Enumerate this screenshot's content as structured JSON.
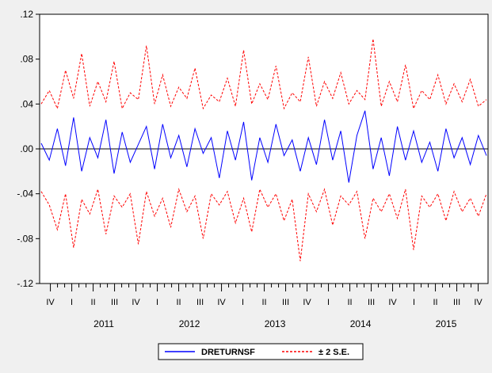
{
  "chart_data": {
    "type": "line",
    "title": "",
    "xlabel": "",
    "ylabel": "",
    "ylim": [
      -0.12,
      0.12
    ],
    "y_ticks": [
      0.12,
      0.08,
      0.04,
      0.0,
      -0.04,
      -0.08,
      -0.12
    ],
    "y_tick_labels": [
      ".12",
      ".08",
      ".04",
      ".00",
      "-.04",
      "-.08",
      "-.12"
    ],
    "x_range": [
      "2010-10-01",
      "2015-12-31"
    ],
    "quarter_labels": [
      "IV",
      "I",
      "II",
      "III",
      "IV",
      "I",
      "II",
      "III",
      "IV",
      "I",
      "II",
      "III",
      "IV",
      "I",
      "II",
      "III",
      "IV",
      "I",
      "II",
      "III",
      "IV"
    ],
    "year_labels": [
      "2011",
      "2012",
      "2013",
      "2014",
      "2015"
    ],
    "grid": false,
    "legend_position": "bottom-center",
    "series": [
      {
        "name": "DRETURNSF",
        "color": "#0000ff",
        "dash": "solid",
        "values": [
          0.005,
          -0.01,
          0.018,
          -0.015,
          0.028,
          -0.02,
          0.01,
          -0.008,
          0.026,
          -0.022,
          0.015,
          -0.012,
          0.004,
          0.02,
          -0.018,
          0.022,
          -0.008,
          0.012,
          -0.016,
          0.018,
          -0.004,
          0.01,
          -0.026,
          0.016,
          -0.01,
          0.024,
          -0.028,
          0.01,
          -0.012,
          0.022,
          -0.006,
          0.008,
          -0.02,
          0.01,
          -0.014,
          0.026,
          -0.01,
          0.016,
          -0.03,
          0.012,
          0.034,
          -0.018,
          0.01,
          -0.024,
          0.02,
          -0.01,
          0.016,
          -0.012,
          0.006,
          -0.02,
          0.018,
          -0.008,
          0.01,
          -0.014,
          0.012,
          -0.006
        ]
      },
      {
        "name": "+2 S.E.",
        "color": "#ff0000",
        "dash": "dashed",
        "values": [
          0.04,
          0.052,
          0.036,
          0.07,
          0.045,
          0.085,
          0.038,
          0.06,
          0.042,
          0.078,
          0.036,
          0.05,
          0.044,
          0.092,
          0.04,
          0.066,
          0.038,
          0.055,
          0.045,
          0.072,
          0.036,
          0.048,
          0.042,
          0.063,
          0.038,
          0.088,
          0.04,
          0.058,
          0.044,
          0.074,
          0.036,
          0.05,
          0.042,
          0.082,
          0.038,
          0.06,
          0.045,
          0.068,
          0.04,
          0.052,
          0.044,
          0.098,
          0.038,
          0.06,
          0.042,
          0.075,
          0.036,
          0.052,
          0.044,
          0.066,
          0.04,
          0.058,
          0.042,
          0.062,
          0.038,
          0.044
        ]
      },
      {
        "name": "-2 S.E.",
        "color": "#ff0000",
        "dash": "dashed",
        "values": [
          -0.038,
          -0.05,
          -0.072,
          -0.04,
          -0.088,
          -0.045,
          -0.058,
          -0.036,
          -0.076,
          -0.042,
          -0.052,
          -0.04,
          -0.085,
          -0.038,
          -0.06,
          -0.044,
          -0.07,
          -0.036,
          -0.056,
          -0.042,
          -0.08,
          -0.04,
          -0.05,
          -0.038,
          -0.066,
          -0.044,
          -0.074,
          -0.036,
          -0.052,
          -0.04,
          -0.064,
          -0.045,
          -0.1,
          -0.04,
          -0.056,
          -0.036,
          -0.068,
          -0.042,
          -0.05,
          -0.038,
          -0.08,
          -0.044,
          -0.056,
          -0.04,
          -0.062,
          -0.036,
          -0.09,
          -0.042,
          -0.052,
          -0.04,
          -0.064,
          -0.038,
          -0.056,
          -0.044,
          -0.06,
          -0.04
        ]
      }
    ],
    "legend": {
      "solid_label": "DRETURNSF",
      "dashed_label": "± 2 S.E."
    }
  }
}
